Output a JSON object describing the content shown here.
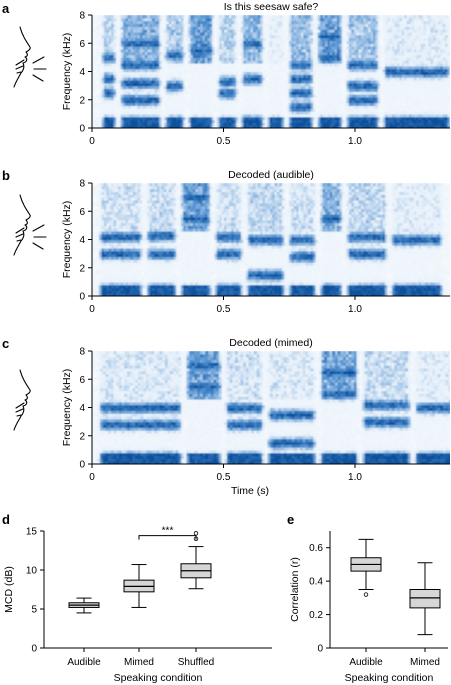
{
  "chart_data": [
    {
      "panel": "a",
      "type": "heatmap",
      "title": "Is this seesaw safe?",
      "ylabel": "Frequency (kHz)",
      "xlabel": "",
      "yticks": [
        "0",
        "2",
        "4",
        "6",
        "8"
      ],
      "xticks": [
        "0",
        "0.5",
        "1.0"
      ],
      "ylim": [
        0,
        8
      ],
      "xlim": [
        0,
        1.37
      ],
      "tick_values_x": [
        0,
        0.5,
        1.0
      ],
      "tick_values_y": [
        0,
        2,
        4,
        6,
        8
      ],
      "seed": 11,
      "segments": [
        {
          "t0": 0.03,
          "t1": 0.1,
          "hi": 0.55,
          "formants": [
            0.5,
            2.5,
            3.5,
            5.0
          ]
        },
        {
          "t0": 0.1,
          "t1": 0.27,
          "hi": 0.8,
          "formants": [
            0.5,
            2.0,
            3.2,
            4.5,
            6.0
          ]
        },
        {
          "t0": 0.27,
          "t1": 0.36,
          "hi": 0.65,
          "formants": [
            0.5,
            3.0,
            5.2
          ]
        },
        {
          "t0": 0.36,
          "t1": 0.47,
          "hi": 0.95,
          "formants": [
            0.4,
            5.5
          ]
        },
        {
          "t0": 0.47,
          "t1": 0.56,
          "hi": 0.55,
          "formants": [
            0.4,
            2.5,
            3.3
          ]
        },
        {
          "t0": 0.56,
          "t1": 0.66,
          "hi": 0.8,
          "formants": [
            0.5,
            3.5,
            6.0
          ]
        },
        {
          "t0": 0.66,
          "t1": 0.74,
          "hi": 0.3,
          "formants": [
            0.4
          ]
        },
        {
          "t0": 0.74,
          "t1": 0.85,
          "hi": 0.7,
          "formants": [
            0.3,
            1.5,
            2.5,
            3.5,
            4.5
          ]
        },
        {
          "t0": 0.85,
          "t1": 0.96,
          "hi": 0.95,
          "formants": [
            0.4,
            5.0,
            6.5
          ]
        },
        {
          "t0": 0.96,
          "t1": 1.1,
          "hi": 0.65,
          "formants": [
            0.5,
            2.0,
            3.0,
            4.5
          ]
        },
        {
          "t0": 1.1,
          "t1": 1.37,
          "hi": 0.35,
          "formants": [
            0.5,
            4.0
          ]
        }
      ]
    },
    {
      "panel": "b",
      "type": "heatmap",
      "title": "Decoded (audible)",
      "ylabel": "Frequency (kHz)",
      "xlabel": "",
      "yticks": [
        "0",
        "2",
        "4",
        "6",
        "8"
      ],
      "xticks": [
        "0",
        "0.5",
        "1.0"
      ],
      "ylim": [
        0,
        8
      ],
      "xlim": [
        0,
        1.37
      ],
      "tick_values_x": [
        0,
        0.5,
        1.0
      ],
      "tick_values_y": [
        0,
        2,
        4,
        6,
        8
      ],
      "seed": 23,
      "segments": [
        {
          "t0": 0.02,
          "t1": 0.2,
          "hi": 0.45,
          "formants": [
            0.5,
            3.0,
            4.2
          ]
        },
        {
          "t0": 0.2,
          "t1": 0.33,
          "hi": 0.5,
          "formants": [
            0.5,
            3.0,
            4.3
          ]
        },
        {
          "t0": 0.33,
          "t1": 0.46,
          "hi": 0.9,
          "formants": [
            0.4,
            5.5,
            7.0
          ]
        },
        {
          "t0": 0.46,
          "t1": 0.58,
          "hi": 0.45,
          "formants": [
            0.5,
            3.0,
            4.2
          ]
        },
        {
          "t0": 0.58,
          "t1": 0.74,
          "hi": 0.55,
          "formants": [
            0.4,
            1.5,
            4.0
          ]
        },
        {
          "t0": 0.74,
          "t1": 0.86,
          "hi": 0.45,
          "formants": [
            0.4,
            2.8,
            4.0
          ]
        },
        {
          "t0": 0.86,
          "t1": 0.96,
          "hi": 0.8,
          "formants": [
            0.5,
            5.5
          ]
        },
        {
          "t0": 0.96,
          "t1": 1.13,
          "hi": 0.55,
          "formants": [
            0.5,
            3.0,
            4.2
          ]
        },
        {
          "t0": 1.13,
          "t1": 1.34,
          "hi": 0.35,
          "formants": [
            0.5,
            4.0
          ]
        }
      ]
    },
    {
      "panel": "c",
      "type": "heatmap",
      "title": "Decoded (mimed)",
      "ylabel": "Frequency (kHz)",
      "xlabel": "Time (s)",
      "yticks": [
        "0",
        "2",
        "4",
        "6",
        "8"
      ],
      "xticks": [
        "0",
        "0.5",
        "1.0"
      ],
      "ylim": [
        0,
        8
      ],
      "xlim": [
        0,
        1.54
      ],
      "tick_values_x": [
        0,
        0.5,
        1.0
      ],
      "tick_values_y": [
        0,
        2,
        4,
        6,
        8
      ],
      "seed": 37,
      "segments": [
        {
          "t0": 0.02,
          "t1": 0.35,
          "hi": 0.4,
          "formants": [
            0.5,
            2.8,
            4.0
          ]
        },
        {
          "t0": 0.35,
          "t1": 0.5,
          "hi": 0.9,
          "formants": [
            0.4,
            5.5,
            7.0
          ]
        },
        {
          "t0": 0.5,
          "t1": 0.66,
          "hi": 0.45,
          "formants": [
            0.5,
            2.8,
            4.0
          ]
        },
        {
          "t0": 0.66,
          "t1": 0.86,
          "hi": 0.4,
          "formants": [
            0.4,
            1.5,
            3.5
          ]
        },
        {
          "t0": 0.86,
          "t1": 1.02,
          "hi": 0.9,
          "formants": [
            0.4,
            5.0,
            6.5
          ]
        },
        {
          "t0": 1.02,
          "t1": 1.22,
          "hi": 0.5,
          "formants": [
            0.5,
            3.0,
            4.2
          ]
        },
        {
          "t0": 1.22,
          "t1": 1.5,
          "hi": 0.35,
          "formants": [
            0.5,
            4.0
          ]
        }
      ]
    },
    {
      "panel": "d",
      "type": "box",
      "ylabel": "MCD (dB)",
      "xlabel": "Speaking condition",
      "categories": [
        "Audible",
        "Mimed",
        "Shuffled"
      ],
      "ylim": [
        0,
        15
      ],
      "yticks": [
        "0",
        "5",
        "10",
        "15"
      ],
      "tick_values_y": [
        0,
        5,
        10,
        15
      ],
      "boxes": [
        {
          "min": 4.5,
          "q1": 5.2,
          "median": 5.5,
          "q3": 5.8,
          "max": 6.4,
          "outliers": []
        },
        {
          "min": 5.2,
          "q1": 7.2,
          "median": 7.9,
          "q3": 8.7,
          "max": 10.7,
          "outliers": []
        },
        {
          "min": 7.6,
          "q1": 9.0,
          "median": 9.9,
          "q3": 10.8,
          "max": 13.0,
          "outliers": [
            14.0,
            14.7
          ]
        }
      ],
      "significance": {
        "from": 1,
        "to": 2,
        "y": 14.4,
        "label": "***"
      }
    },
    {
      "panel": "e",
      "type": "box",
      "ylabel": "Correlation (r)",
      "xlabel": "Speaking condition",
      "categories": [
        "Audible",
        "Mimed"
      ],
      "ylim": [
        0,
        0.7
      ],
      "yticks": [
        "0",
        "0.2",
        "0.4",
        "0.6"
      ],
      "tick_values_y": [
        0,
        0.2,
        0.4,
        0.6
      ],
      "boxes": [
        {
          "min": 0.35,
          "q1": 0.46,
          "median": 0.5,
          "q3": 0.54,
          "max": 0.65,
          "outliers": [
            0.32
          ]
        },
        {
          "min": 0.08,
          "q1": 0.24,
          "median": 0.3,
          "q3": 0.35,
          "max": 0.51,
          "outliers": []
        }
      ]
    }
  ],
  "colors": {
    "spec_dark": "#0a4f9c",
    "spec_mid": "#4f8fcf",
    "spec_light": "#e8f1fa",
    "box_fill": "#d6d6d6",
    "axis": "#000000"
  },
  "icons": [
    "face-speaking-icon",
    "face-speaking-icon",
    "face-mimed-icon"
  ]
}
